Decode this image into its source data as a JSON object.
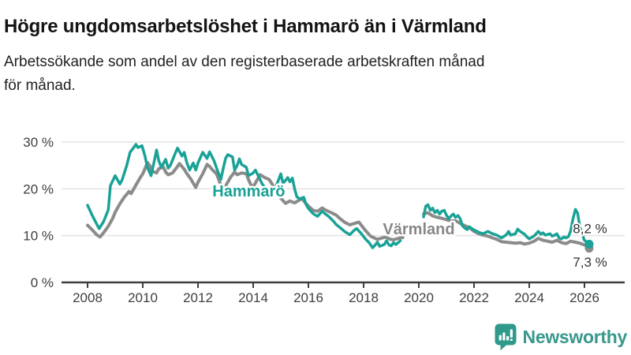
{
  "title": "Högre ungdomsarbetslöshet i Hammarö än i Värmland",
  "subtitle": "Arbetssökande som andel av den registerbaserade arbetskraften månad för månad.",
  "subtitle_lines": [
    "Arbetssökande som andel av den registerbaserade arbetskraften månad",
    "för månad."
  ],
  "logo": {
    "text": "Newsworthy",
    "icon": "newsworthy-bubble-chart-icon",
    "color": "#38988b"
  },
  "chart_data": {
    "type": "line",
    "unit": "%",
    "grid_color": "#e3e3e3",
    "axis_color": "#3e3e3e",
    "background": "#ffffff",
    "legend_position": "inline-labels",
    "x_axis": {
      "range": [
        2007.8,
        2026.5
      ],
      "tick_values": [
        2008,
        2010,
        2012,
        2014,
        2016,
        2018,
        2020,
        2022,
        2024,
        2026
      ],
      "tick_labels": [
        "2008",
        "2010",
        "2012",
        "2014",
        "2016",
        "2018",
        "2020",
        "2022",
        "2024",
        "2026"
      ]
    },
    "y_axis": {
      "range": [
        0,
        32
      ],
      "tick_values": [
        0,
        10,
        20,
        30
      ],
      "tick_labels": [
        "0 %",
        "10 %",
        "20 %",
        "30 %"
      ]
    },
    "data_gap": {
      "from": 2019.45,
      "to": 2020.15
    },
    "series": [
      {
        "id": "varmland",
        "name": "Värmland",
        "color": "#8b8b8b",
        "label_color": "#878787",
        "stroke_width": 4,
        "label_x": 2020.0,
        "label_y": 10.3,
        "end_label": "7,3 %",
        "end_label_x": 2025.58,
        "end_label_y": 3.4,
        "last_value": 7.3,
        "points": [
          [
            2008.0,
            12.2
          ],
          [
            2008.17,
            11.2
          ],
          [
            2008.33,
            10.2
          ],
          [
            2008.45,
            9.7
          ],
          [
            2008.58,
            10.6
          ],
          [
            2008.75,
            12.0
          ],
          [
            2008.92,
            13.8
          ],
          [
            2009.0,
            15.0
          ],
          [
            2009.17,
            16.8
          ],
          [
            2009.33,
            18.2
          ],
          [
            2009.5,
            19.4
          ],
          [
            2009.58,
            19.0
          ],
          [
            2009.75,
            20.8
          ],
          [
            2009.92,
            22.5
          ],
          [
            2010.0,
            23.2
          ],
          [
            2010.17,
            25.6
          ],
          [
            2010.25,
            25.0
          ],
          [
            2010.33,
            23.8
          ],
          [
            2010.5,
            23.4
          ],
          [
            2010.58,
            24.3
          ],
          [
            2010.75,
            24.6
          ],
          [
            2010.83,
            23.6
          ],
          [
            2010.92,
            23.0
          ],
          [
            2011.08,
            23.4
          ],
          [
            2011.25,
            24.7
          ],
          [
            2011.33,
            25.4
          ],
          [
            2011.5,
            24.2
          ],
          [
            2011.58,
            23.4
          ],
          [
            2011.75,
            22.0
          ],
          [
            2011.83,
            21.2
          ],
          [
            2011.92,
            20.3
          ],
          [
            2012.0,
            21.4
          ],
          [
            2012.17,
            23.2
          ],
          [
            2012.33,
            25.2
          ],
          [
            2012.42,
            24.8
          ],
          [
            2012.5,
            24.2
          ],
          [
            2012.67,
            23.2
          ],
          [
            2012.83,
            20.8
          ],
          [
            2012.92,
            20.2
          ],
          [
            2013.0,
            20.6
          ],
          [
            2013.17,
            22.4
          ],
          [
            2013.33,
            23.6
          ],
          [
            2013.42,
            23.0
          ],
          [
            2013.58,
            23.4
          ],
          [
            2013.75,
            23.2
          ],
          [
            2013.83,
            22.0
          ],
          [
            2013.92,
            20.8
          ],
          [
            2014.0,
            20.4
          ],
          [
            2014.17,
            22.2
          ],
          [
            2014.25,
            23.0
          ],
          [
            2014.42,
            22.4
          ],
          [
            2014.58,
            22.0
          ],
          [
            2014.75,
            20.4
          ],
          [
            2014.92,
            19.0
          ],
          [
            2015.0,
            18.0
          ],
          [
            2015.17,
            16.9
          ],
          [
            2015.33,
            17.4
          ],
          [
            2015.5,
            17.0
          ],
          [
            2015.67,
            17.6
          ],
          [
            2015.75,
            18.0
          ],
          [
            2015.92,
            16.8
          ],
          [
            2016.0,
            16.3
          ],
          [
            2016.17,
            15.4
          ],
          [
            2016.33,
            15.2
          ],
          [
            2016.5,
            15.9
          ],
          [
            2016.67,
            15.3
          ],
          [
            2016.83,
            14.9
          ],
          [
            2017.0,
            14.4
          ],
          [
            2017.17,
            13.5
          ],
          [
            2017.33,
            12.8
          ],
          [
            2017.5,
            12.3
          ],
          [
            2017.67,
            12.6
          ],
          [
            2017.83,
            12.9
          ],
          [
            2017.92,
            12.2
          ],
          [
            2018.08,
            11.0
          ],
          [
            2018.25,
            9.9
          ],
          [
            2018.42,
            9.4
          ],
          [
            2018.5,
            9.2
          ],
          [
            2018.67,
            9.5
          ],
          [
            2018.83,
            9.7
          ],
          [
            2018.92,
            9.3
          ],
          [
            2019.08,
            9.1
          ],
          [
            2019.25,
            9.4
          ],
          [
            2019.42,
            9.6
          ],
          null,
          [
            2020.17,
            14.6
          ],
          [
            2020.33,
            14.9
          ],
          [
            2020.5,
            14.2
          ],
          [
            2020.67,
            13.9
          ],
          [
            2020.83,
            13.7
          ],
          [
            2021.0,
            13.4
          ],
          [
            2021.17,
            13.1
          ],
          [
            2021.33,
            13.2
          ],
          [
            2021.5,
            12.6
          ],
          [
            2021.67,
            12.1
          ],
          [
            2021.83,
            11.7
          ],
          [
            2022.0,
            10.9
          ],
          [
            2022.17,
            10.4
          ],
          [
            2022.33,
            10.1
          ],
          [
            2022.5,
            9.9
          ],
          [
            2022.67,
            9.5
          ],
          [
            2022.83,
            9.2
          ],
          [
            2023.0,
            8.7
          ],
          [
            2023.17,
            8.6
          ],
          [
            2023.33,
            8.5
          ],
          [
            2023.5,
            8.4
          ],
          [
            2023.67,
            8.5
          ],
          [
            2023.83,
            8.2
          ],
          [
            2024.0,
            8.4
          ],
          [
            2024.17,
            8.8
          ],
          [
            2024.33,
            9.4
          ],
          [
            2024.5,
            9.0
          ],
          [
            2024.67,
            8.8
          ],
          [
            2024.83,
            8.6
          ],
          [
            2025.0,
            9.0
          ],
          [
            2025.17,
            8.5
          ],
          [
            2025.33,
            8.3
          ],
          [
            2025.5,
            8.8
          ],
          [
            2025.67,
            8.6
          ],
          [
            2025.83,
            8.4
          ],
          [
            2026.0,
            8.0
          ],
          [
            2026.17,
            7.3
          ]
        ]
      },
      {
        "id": "hammaro",
        "name": "Hammarö",
        "color": "#19a296",
        "label_color": "#19a296",
        "stroke_width": 3.5,
        "label_x": 2013.84,
        "label_y": 18.4,
        "end_label": "8,2 %",
        "end_label_x": 2025.58,
        "end_label_y": 10.5,
        "last_value": 8.2,
        "points": [
          [
            2008.0,
            16.5
          ],
          [
            2008.17,
            14.3
          ],
          [
            2008.33,
            12.5
          ],
          [
            2008.42,
            11.5
          ],
          [
            2008.58,
            13.0
          ],
          [
            2008.75,
            15.5
          ],
          [
            2008.83,
            20.7
          ],
          [
            2009.0,
            22.8
          ],
          [
            2009.17,
            21.0
          ],
          [
            2009.25,
            21.9
          ],
          [
            2009.42,
            25.0
          ],
          [
            2009.54,
            27.8
          ],
          [
            2009.67,
            28.8
          ],
          [
            2009.75,
            29.5
          ],
          [
            2009.83,
            28.8
          ],
          [
            2009.97,
            29.2
          ],
          [
            2010.08,
            27.0
          ],
          [
            2010.17,
            24.5
          ],
          [
            2010.3,
            22.8
          ],
          [
            2010.42,
            26.0
          ],
          [
            2010.5,
            28.3
          ],
          [
            2010.58,
            26.0
          ],
          [
            2010.67,
            24.6
          ],
          [
            2010.83,
            26.3
          ],
          [
            2010.92,
            24.4
          ],
          [
            2011.0,
            25.0
          ],
          [
            2011.17,
            27.5
          ],
          [
            2011.26,
            28.7
          ],
          [
            2011.42,
            27.0
          ],
          [
            2011.5,
            27.8
          ],
          [
            2011.6,
            25.5
          ],
          [
            2011.7,
            24.0
          ],
          [
            2011.83,
            25.5
          ],
          [
            2011.92,
            24.0
          ],
          [
            2012.0,
            25.5
          ],
          [
            2012.17,
            27.8
          ],
          [
            2012.33,
            26.5
          ],
          [
            2012.42,
            27.9
          ],
          [
            2012.58,
            26.0
          ],
          [
            2012.7,
            24.0
          ],
          [
            2012.83,
            22.0
          ],
          [
            2012.92,
            24.5
          ],
          [
            2013.0,
            26.5
          ],
          [
            2013.08,
            27.3
          ],
          [
            2013.25,
            26.8
          ],
          [
            2013.33,
            24.0
          ],
          [
            2013.42,
            25.0
          ],
          [
            2013.5,
            26.4
          ],
          [
            2013.58,
            25.2
          ],
          [
            2013.75,
            24.6
          ],
          [
            2013.83,
            22.8
          ],
          [
            2014.0,
            23.4
          ],
          [
            2014.08,
            24.0
          ],
          [
            2014.25,
            22.0
          ],
          [
            2014.33,
            21.0
          ],
          [
            2014.5,
            19.8
          ],
          [
            2014.67,
            20.3
          ],
          [
            2014.75,
            19.7
          ],
          [
            2014.83,
            20.5
          ],
          [
            2015.0,
            23.2
          ],
          [
            2015.08,
            21.2
          ],
          [
            2015.17,
            21.8
          ],
          [
            2015.25,
            22.4
          ],
          [
            2015.33,
            21.5
          ],
          [
            2015.42,
            22.3
          ],
          [
            2015.5,
            20.0
          ],
          [
            2015.58,
            18.3
          ],
          [
            2015.7,
            17.8
          ],
          [
            2015.83,
            18.2
          ],
          [
            2015.92,
            16.6
          ],
          [
            2016.0,
            15.8
          ],
          [
            2016.17,
            14.7
          ],
          [
            2016.33,
            14.1
          ],
          [
            2016.5,
            15.2
          ],
          [
            2016.58,
            14.8
          ],
          [
            2016.75,
            14.0
          ],
          [
            2016.92,
            13.0
          ],
          [
            2017.0,
            12.4
          ],
          [
            2017.17,
            11.6
          ],
          [
            2017.33,
            10.8
          ],
          [
            2017.5,
            10.2
          ],
          [
            2017.67,
            11.2
          ],
          [
            2017.75,
            11.5
          ],
          [
            2017.92,
            10.4
          ],
          [
            2018.08,
            9.2
          ],
          [
            2018.2,
            8.5
          ],
          [
            2018.33,
            7.4
          ],
          [
            2018.42,
            8.0
          ],
          [
            2018.5,
            8.6
          ],
          [
            2018.58,
            7.7
          ],
          [
            2018.75,
            8.1
          ],
          [
            2018.83,
            8.9
          ],
          [
            2018.92,
            8.0
          ],
          [
            2019.0,
            7.8
          ],
          [
            2019.08,
            8.5
          ],
          [
            2019.17,
            8.1
          ],
          [
            2019.33,
            8.9
          ],
          null,
          [
            2020.17,
            14.0
          ],
          [
            2020.25,
            16.3
          ],
          [
            2020.33,
            16.6
          ],
          [
            2020.42,
            15.4
          ],
          [
            2020.5,
            15.9
          ],
          [
            2020.58,
            14.9
          ],
          [
            2020.67,
            15.4
          ],
          [
            2020.75,
            14.6
          ],
          [
            2020.83,
            15.2
          ],
          [
            2020.92,
            15.4
          ],
          [
            2021.0,
            14.4
          ],
          [
            2021.08,
            13.6
          ],
          [
            2021.17,
            14.2
          ],
          [
            2021.25,
            14.6
          ],
          [
            2021.33,
            13.9
          ],
          [
            2021.42,
            14.3
          ],
          [
            2021.5,
            13.6
          ],
          [
            2021.58,
            12.1
          ],
          [
            2021.67,
            11.6
          ],
          [
            2021.75,
            11.3
          ],
          [
            2021.83,
            11.9
          ],
          [
            2021.92,
            11.5
          ],
          [
            2022.0,
            11.2
          ],
          [
            2022.17,
            10.7
          ],
          [
            2022.33,
            10.4
          ],
          [
            2022.5,
            10.9
          ],
          [
            2022.67,
            10.4
          ],
          [
            2022.83,
            10.1
          ],
          [
            2023.0,
            9.5
          ],
          [
            2023.17,
            10.2
          ],
          [
            2023.25,
            10.9
          ],
          [
            2023.33,
            10.1
          ],
          [
            2023.5,
            10.4
          ],
          [
            2023.58,
            11.4
          ],
          [
            2023.67,
            10.9
          ],
          [
            2023.83,
            10.3
          ],
          [
            2023.92,
            9.7
          ],
          [
            2024.0,
            9.3
          ],
          [
            2024.17,
            9.9
          ],
          [
            2024.33,
            10.9
          ],
          [
            2024.42,
            10.3
          ],
          [
            2024.5,
            10.6
          ],
          [
            2024.58,
            10.1
          ],
          [
            2024.75,
            10.4
          ],
          [
            2024.83,
            9.9
          ],
          [
            2024.92,
            10.1
          ],
          [
            2025.0,
            10.4
          ],
          [
            2025.08,
            9.5
          ],
          [
            2025.17,
            9.3
          ],
          [
            2025.25,
            9.7
          ],
          [
            2025.33,
            9.5
          ],
          [
            2025.42,
            9.8
          ],
          [
            2025.5,
            11.0
          ],
          [
            2025.58,
            13.5
          ],
          [
            2025.67,
            15.6
          ],
          [
            2025.75,
            14.8
          ],
          [
            2025.83,
            12.0
          ],
          [
            2025.92,
            10.2
          ],
          [
            2026.0,
            9.0
          ],
          [
            2026.17,
            8.2
          ]
        ]
      }
    ]
  }
}
